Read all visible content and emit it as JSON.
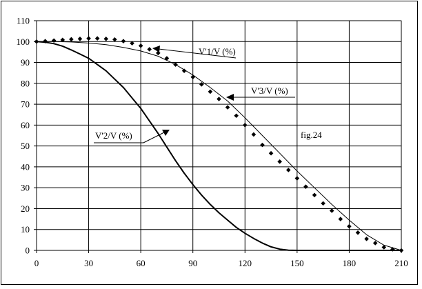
{
  "chart_data": {
    "type": "line",
    "xlim": [
      0,
      210
    ],
    "ylim": [
      0,
      110
    ],
    "x_ticks": [
      "0",
      "30",
      "60",
      "90",
      "120",
      "150",
      "180",
      "210"
    ],
    "y_ticks": [
      "0",
      "10",
      "20",
      "30",
      "40",
      "50",
      "60",
      "70",
      "80",
      "90",
      "100",
      "110"
    ],
    "grid": "horizontal and vertical gridlines at every tick",
    "legend": "none; series identified by arrow annotations",
    "series": [
      {
        "name": "V'1/V (%)",
        "style": "thin solid line",
        "x": [
          0,
          10,
          20,
          30,
          40,
          50,
          60,
          70,
          80,
          90,
          100,
          110,
          120,
          130,
          140,
          150,
          160,
          170,
          180,
          190,
          200,
          210
        ],
        "y": [
          100,
          100,
          99.8,
          99.3,
          98.5,
          97.2,
          95.5,
          93,
          89,
          84,
          78,
          71.5,
          63.5,
          55,
          46.5,
          38,
          30,
          22,
          14.5,
          7.5,
          2.5,
          0
        ]
      },
      {
        "name": "V'2/V (%)",
        "style": "thick solid line",
        "x": [
          0,
          5,
          10,
          15,
          20,
          25,
          30,
          35,
          40,
          45,
          50,
          55,
          60,
          65,
          70,
          75,
          80,
          85,
          90,
          95,
          100,
          105,
          110,
          115,
          120,
          125,
          130,
          135,
          140,
          145,
          150,
          160,
          170,
          180,
          190,
          200,
          210
        ],
        "y": [
          100,
          99.7,
          99,
          97.8,
          96,
          94,
          92,
          89,
          86,
          82,
          78,
          73,
          68,
          62,
          56,
          49.5,
          43,
          37,
          31.5,
          26.5,
          22,
          18,
          14.5,
          11,
          8.2,
          5.7,
          3.5,
          1.7,
          0.6,
          0.1,
          0,
          0,
          0,
          0,
          0,
          0,
          0
        ]
      },
      {
        "name": "V'3/V (%)",
        "style": "diamond markers",
        "x": [
          0,
          5,
          10,
          15,
          20,
          25,
          30,
          35,
          40,
          45,
          50,
          55,
          60,
          65,
          70,
          75,
          80,
          85,
          90,
          95,
          100,
          105,
          110,
          115,
          120,
          125,
          130,
          135,
          140,
          145,
          150,
          155,
          160,
          165,
          170,
          175,
          180,
          185,
          190,
          195,
          200,
          205,
          210
        ],
        "y": [
          100,
          100.2,
          100.5,
          100.8,
          101.1,
          101.3,
          101.5,
          101.5,
          101.3,
          101,
          100.2,
          99.2,
          98,
          96.3,
          94.5,
          92,
          89,
          86,
          83,
          79.5,
          76,
          72.5,
          68.5,
          64.5,
          60,
          55.5,
          50.5,
          46.5,
          42.5,
          38.5,
          34.5,
          30.5,
          26.5,
          22.5,
          19,
          15,
          11.5,
          8.5,
          5.5,
          3.5,
          1.5,
          0.5,
          0
        ]
      }
    ],
    "annotations": [
      {
        "text": "V'1/V (%)",
        "series": 0
      },
      {
        "text": "V'3/V (%)",
        "series": 2
      },
      {
        "text": "V'2/V (%)",
        "series": 1
      },
      {
        "text": "fig.24"
      }
    ]
  }
}
